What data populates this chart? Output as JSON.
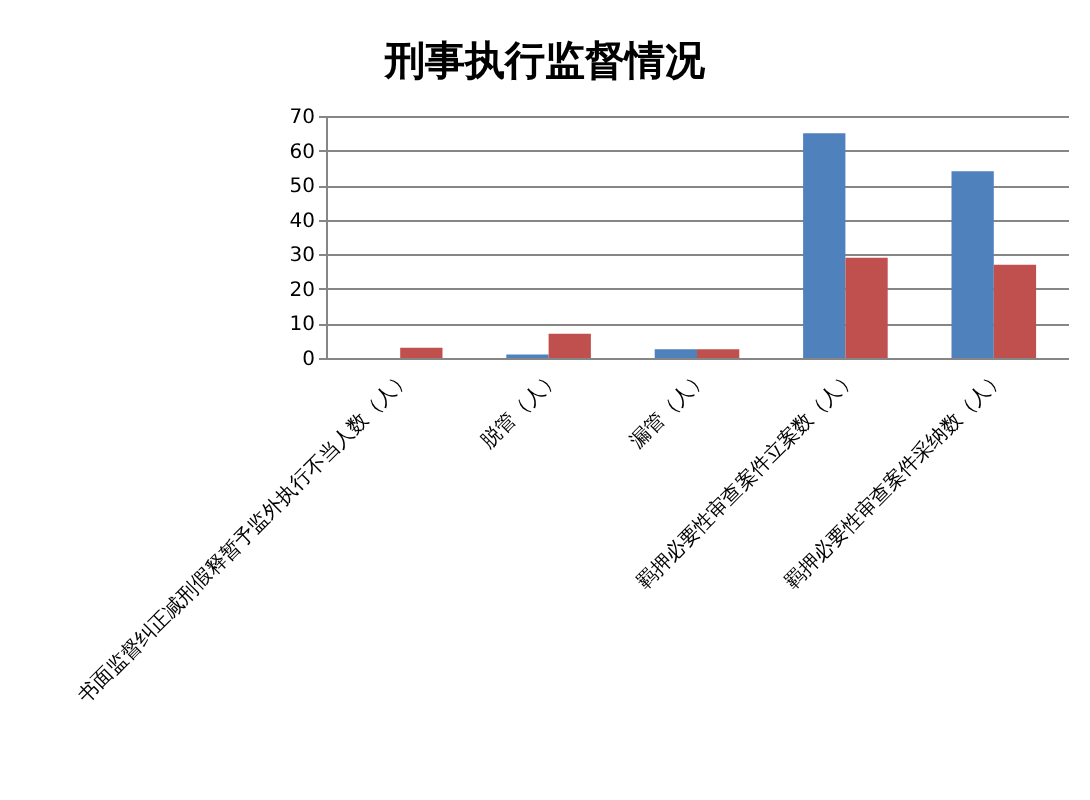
{
  "chart_data": {
    "type": "bar",
    "title": "刑事执行监督情况",
    "categories": [
      "书面监督纠正减刑假释暂予监外执行不当人数（人）",
      "脱管（人）",
      "漏管（人）",
      "羁押必要性审查案件立案数（人）",
      "羁押必要性审查案件采纳数（人）"
    ],
    "series": [
      {
        "color": "#4f81bd",
        "values": [
          null,
          1,
          2.5,
          65,
          54
        ]
      },
      {
        "color": "#c0504d",
        "values": [
          3,
          7,
          2.5,
          29,
          27
        ]
      }
    ],
    "ylim": [
      0,
      70
    ],
    "yticks": [
      0,
      10,
      20,
      30,
      40,
      50,
      60,
      70
    ],
    "grid": "y"
  }
}
